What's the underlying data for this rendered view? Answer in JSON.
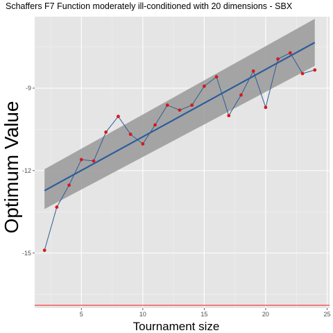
{
  "chart_data": {
    "type": "line",
    "title": "Schaffers F7 Function moderately ill-conditioned with 20 dimensions -  SBX",
    "xlabel": "Tournament size",
    "ylabel": "Optimum Value",
    "xlim": [
      1.2,
      25.2
    ],
    "ylim": [
      -17.0,
      -6.4
    ],
    "x_ticks": [
      5,
      10,
      15,
      20,
      25
    ],
    "y_ticks": [
      -15,
      -12,
      -9
    ],
    "grid": true,
    "series": [
      {
        "x": [
          2,
          3,
          4,
          5,
          6,
          7,
          8,
          9,
          10,
          11,
          12,
          13,
          14,
          15,
          16,
          17,
          18,
          19,
          20,
          21,
          22,
          23,
          24
        ],
        "values": [
          -14.9,
          -13.33,
          -12.53,
          -11.6,
          -11.65,
          -10.6,
          -10.03,
          -10.68,
          -11.03,
          -10.34,
          -9.62,
          -9.8,
          -9.62,
          -8.93,
          -8.59,
          -10.0,
          -9.25,
          -8.38,
          -9.7,
          -7.94,
          -7.72,
          -8.47,
          -8.34
        ]
      }
    ],
    "trend": {
      "x_start": 2,
      "y_start": -12.73,
      "x_end": 24,
      "y_end": -7.34,
      "band_start": [
        -13.4,
        -11.95
      ],
      "band_end": [
        -8.19,
        -6.48
      ]
    },
    "reference_line": {
      "y": -16.9
    },
    "colors": {
      "panel": "#e5e5e5",
      "grid_major": "#ffffff",
      "series_line": "#2e5b94",
      "point": "#d7191c",
      "trend_line": "#2c5d9a",
      "ribbon": "#999999",
      "reference_line": "#ff2a2a"
    }
  }
}
